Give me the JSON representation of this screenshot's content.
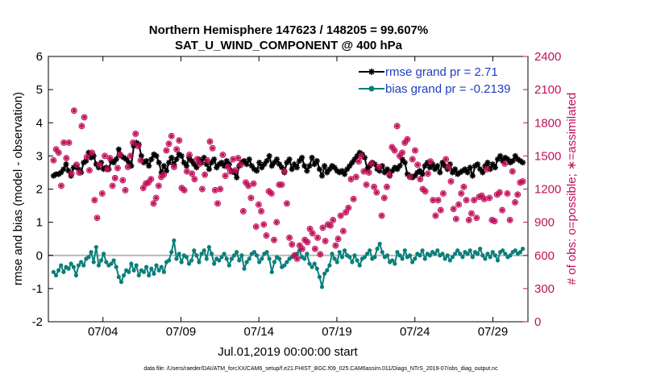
{
  "chart_data": {
    "type": "line",
    "title": "Northern Hemisphere 147623 / 148205 = 99.607%",
    "subtitle": "SAT_U_WIND_COMPONENT @ 400 hPa",
    "xlabel": "Jul.01,2019 00:00:00 start",
    "ylabel_left": "rmse and bias (model - observation)",
    "ylabel_right": "# of obs: o=possible; ∗=assimilated",
    "footnote": "data file: /Users/raeder/DAI/ATM_forcXX/CAM6_setup/f.e21.FHIST_BGC.f09_025.CAM6assim.011/Diags_NTrS_2019-07/obs_diag_output.nc",
    "x_range": [
      0.5,
      31.25
    ],
    "x_ticks": [
      {
        "day": 4,
        "label": "07/04"
      },
      {
        "day": 9,
        "label": "07/09"
      },
      {
        "day": 14,
        "label": "07/14"
      },
      {
        "day": 19,
        "label": "07/19"
      },
      {
        "day": 24,
        "label": "07/24"
      },
      {
        "day": 29,
        "label": "07/29"
      }
    ],
    "ylim_left": [
      -2,
      6
    ],
    "y_ticks_left": [
      "-2",
      "-1",
      "0",
      "1",
      "2",
      "3",
      "4",
      "5",
      "6"
    ],
    "ylim_right": [
      0,
      2400
    ],
    "y_ticks_right": [
      "0",
      "300",
      "600",
      "900",
      "1200",
      "1500",
      "1800",
      "2100",
      "2400"
    ],
    "series": [
      {
        "name": "rmse grand pr = 2.71",
        "color": "#000000",
        "axis": "left",
        "values": [
          2.4,
          2.45,
          2.45,
          2.5,
          2.6,
          2.75,
          2.55,
          2.4,
          2.65,
          2.7,
          2.6,
          2.5,
          2.8,
          2.85,
          3.1,
          2.95,
          3.0,
          2.75,
          2.65,
          2.8,
          2.6,
          2.65,
          2.6,
          2.85,
          2.8,
          2.9,
          3.2,
          3.0,
          2.95,
          2.9,
          2.8,
          2.7,
          3.3,
          3.4,
          3.35,
          3.0,
          2.8,
          2.85,
          2.7,
          2.9,
          3.05,
          3.0,
          2.8,
          2.5,
          2.7,
          2.55,
          2.8,
          2.95,
          2.75,
          2.9,
          3.05,
          3.0,
          2.8,
          2.7,
          2.95,
          2.85,
          2.75,
          2.65,
          2.9,
          2.8,
          2.95,
          2.75,
          2.6,
          2.8,
          2.9,
          2.65,
          2.75,
          2.8,
          2.7,
          2.85,
          2.75,
          2.55,
          2.5,
          2.35,
          2.7,
          2.8,
          2.85,
          2.75,
          2.9,
          2.7,
          2.6,
          2.55,
          2.8,
          2.65,
          2.75,
          2.85,
          3.0,
          2.7,
          2.8,
          2.9,
          2.75,
          2.65,
          2.5,
          2.8,
          2.9,
          2.6,
          2.75,
          2.65,
          2.85,
          2.95,
          2.7,
          2.55,
          2.7,
          2.95,
          2.75,
          2.85,
          2.6,
          2.4,
          2.7,
          2.5,
          2.6,
          2.7,
          2.65,
          2.55,
          2.5,
          2.55,
          2.45,
          2.6,
          2.7,
          2.8,
          2.9,
          3.0,
          3.1,
          3.05,
          2.95,
          2.6,
          2.7,
          2.8,
          2.75,
          2.6,
          2.55,
          2.7,
          2.5,
          2.6,
          2.4,
          2.55,
          2.65,
          2.6,
          2.7,
          2.9,
          2.8,
          2.45,
          2.4,
          2.35,
          2.4,
          2.5,
          2.55,
          2.45,
          2.7,
          2.8,
          2.65,
          2.75,
          2.6,
          2.7,
          2.5,
          2.8,
          2.7,
          2.6,
          2.75,
          2.5,
          2.6,
          2.45,
          2.5,
          2.55,
          2.6,
          2.5,
          2.65,
          2.4,
          2.7,
          2.75,
          2.6,
          2.5,
          2.7,
          2.8,
          2.6,
          2.75,
          2.65,
          2.9,
          3.0,
          2.85,
          2.95,
          2.9,
          2.8,
          2.85,
          3.0,
          2.9,
          2.85,
          2.8
        ]
      },
      {
        "name": "bias grand pr = -0.2139",
        "color": "#0b7f7a",
        "axis": "left",
        "values": [
          -0.5,
          -0.6,
          -0.45,
          -0.3,
          -0.5,
          -0.35,
          -0.4,
          -0.25,
          -0.35,
          -0.6,
          -0.3,
          -0.2,
          -0.3,
          -0.1,
          -0.05,
          0.1,
          -0.2,
          0.25,
          -0.3,
          -0.15,
          0.05,
          -0.2,
          -0.3,
          -0.25,
          -0.15,
          -0.35,
          -0.65,
          -0.8,
          -0.6,
          -0.45,
          -0.5,
          -0.25,
          -0.45,
          -0.3,
          -0.6,
          -0.45,
          -0.5,
          -0.35,
          -0.6,
          -0.4,
          -0.55,
          -0.3,
          -0.45,
          -0.35,
          -0.5,
          -0.2,
          -0.15,
          0.1,
          0.45,
          -0.1,
          0.05,
          -0.2,
          0.0,
          -0.05,
          -0.25,
          -0.15,
          0.15,
          0.0,
          -0.2,
          0.05,
          0.15,
          -0.1,
          0.25,
          0.05,
          -0.25,
          -0.1,
          -0.15,
          -0.05,
          0.05,
          -0.1,
          -0.3,
          -0.1,
          0.0,
          0.1,
          -0.15,
          0.0,
          -0.4,
          -0.2,
          -0.1,
          0.05,
          0.1,
          0.0,
          -0.2,
          -0.1,
          0.05,
          0.1,
          -0.1,
          -0.5,
          -0.2,
          -0.05,
          -0.1,
          -0.35,
          -0.3,
          -0.2,
          -0.1,
          -0.05,
          0.0,
          0.05,
          0.15,
          -0.05,
          -0.1,
          0.05,
          -0.25,
          -0.35,
          -0.25,
          -0.4,
          -0.65,
          -0.95,
          -0.55,
          -0.45,
          -0.3,
          0.05,
          -0.1,
          -0.2,
          0.1,
          -0.05,
          0.15,
          0.0,
          -0.05,
          -0.2,
          0.0,
          -0.15,
          -0.3,
          -0.1,
          -0.05,
          0.05,
          0.15,
          -0.1,
          -0.05,
          0.2,
          0.35,
          0.1,
          -0.05,
          0.0,
          -0.2,
          -0.15,
          -0.25,
          0.1,
          0.0,
          -0.1,
          0.15,
          -0.05,
          0.0,
          -0.2,
          -0.1,
          0.05,
          0.0,
          0.15,
          -0.1,
          0.05,
          0.0,
          0.1,
          0.05,
          0.15,
          0.0,
          0.05,
          -0.1,
          0.0,
          -0.15,
          -0.05,
          0.05,
          0.15,
          0.05,
          -0.05,
          0.1,
          0.05,
          0.15,
          -0.05,
          0.1,
          0.05,
          0.2,
          0.0,
          -0.1,
          0.05,
          -0.05,
          0.1,
          0.0,
          -0.15,
          0.1,
          0.15,
          0.05,
          -0.05,
          0.0,
          0.1,
          0.15,
          0.05,
          0.1,
          0.2
        ]
      },
      {
        "name": "# of obs",
        "color": "#c0105a",
        "axis": "right",
        "values": [
          1460,
          1560,
          1530,
          1230,
          1620,
          1480,
          1620,
          1340,
          1910,
          1420,
          1350,
          1770,
          1850,
          1490,
          1370,
          1530,
          1100,
          940,
          1420,
          1160,
          1500,
          1380,
          1480,
          1230,
          1300,
          1390,
          1510,
          1280,
          1190,
          1400,
          1500,
          1620,
          1700,
          1590,
          1460,
          1210,
          1250,
          1260,
          1290,
          1070,
          1120,
          1230,
          1310,
          1330,
          1550,
          1610,
          1680,
          1400,
          1560,
          1640,
          1210,
          1190,
          1360,
          1510,
          1340,
          1290,
          1470,
          1430,
          1200,
          1330,
          1460,
          1630,
          1570,
          1190,
          1070,
          1200,
          1510,
          1320,
          1400,
          1360,
          1470,
          1370,
          1480,
          1420,
          1000,
          1260,
          1230,
          1120,
          1250,
          860,
          1060,
          1000,
          880,
          780,
          1180,
          1160,
          740,
          900,
          1240,
          1240,
          1360,
          1070,
          760,
          700,
          600,
          570,
          690,
          660,
          740,
          720,
          840,
          800,
          660,
          760,
          610,
          850,
          730,
          880,
          870,
          920,
          690,
          750,
          960,
          820,
          990,
          1030,
          1290,
          1110,
          1310,
          1450,
          1500,
          1360,
          1240,
          1350,
          1430,
          1220,
          1170,
          1400,
          960,
          1120,
          1220,
          1330,
          1580,
          1550,
          1770,
          1500,
          1530,
          1620,
          1650,
          1310,
          1470,
          1550,
          1420,
          1290,
          1200,
          1180,
          1340,
          1450,
          1100,
          960,
          1100,
          1010,
          1160,
          1470,
          1400,
          1270,
          1020,
          930,
          1060,
          1160,
          1220,
          1100,
          920,
          980,
          1100,
          940,
          1130,
          1140,
          1110,
          1380,
          1120,
          920,
          910,
          1150,
          1170,
          1010,
          1430,
          1160,
          920,
          1360,
          1080,
          1150,
          1260,
          1270
        ]
      }
    ],
    "reference_line_y": 0,
    "legend_location": "top-right",
    "grid": false
  }
}
